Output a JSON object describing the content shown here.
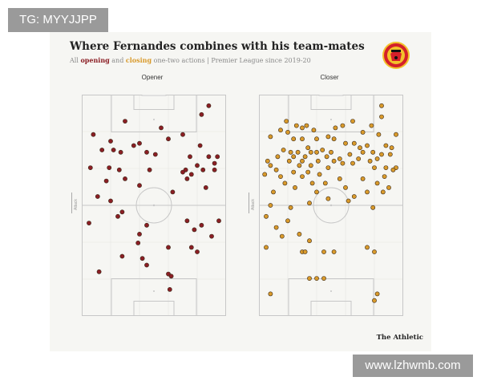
{
  "watermark_top": "TG: MYYJJPP",
  "watermark_bottom": "www.lzhwmb.com",
  "brand": "The Athletic",
  "colors": {
    "opener": "#8b1e24",
    "closer": "#d99a2b",
    "pitch_line": "#c7c7c7",
    "card_bg": "#f6f6f3"
  },
  "chart_data": {
    "type": "scatter",
    "title": "Where Fernandes combines with his team-mates",
    "subtitle_parts": [
      "All ",
      "opening",
      " and ",
      "closing",
      " one-two actions | Premier League since 2019-20"
    ],
    "axis_note": "Attack",
    "x_range": [
      0,
      100
    ],
    "y_range": [
      0,
      100
    ],
    "grid": true,
    "series": [
      {
        "name": "Opener",
        "color": "#8b1e24",
        "points": [
          [
            88,
            5
          ],
          [
            83,
            9
          ],
          [
            30,
            12
          ],
          [
            55,
            15
          ],
          [
            8,
            18
          ],
          [
            70,
            18
          ],
          [
            60,
            20
          ],
          [
            20,
            21
          ],
          [
            40,
            22
          ],
          [
            36,
            23
          ],
          [
            82,
            23
          ],
          [
            14,
            25
          ],
          [
            22,
            25
          ],
          [
            27,
            26
          ],
          [
            45,
            26
          ],
          [
            51,
            27
          ],
          [
            94,
            28
          ],
          [
            75,
            28
          ],
          [
            88,
            28
          ],
          [
            92,
            31
          ],
          [
            6,
            33
          ],
          [
            19,
            33
          ],
          [
            26,
            34
          ],
          [
            47,
            34
          ],
          [
            72,
            34
          ],
          [
            80,
            32
          ],
          [
            84,
            34
          ],
          [
            92,
            34
          ],
          [
            70,
            35
          ],
          [
            76,
            36
          ],
          [
            30,
            38
          ],
          [
            73,
            38
          ],
          [
            17,
            39
          ],
          [
            40,
            41
          ],
          [
            86,
            42
          ],
          [
            63,
            44
          ],
          [
            11,
            46
          ],
          [
            20,
            48
          ],
          [
            28,
            53
          ],
          [
            25,
            55
          ],
          [
            73,
            57
          ],
          [
            95,
            57
          ],
          [
            5,
            58
          ],
          [
            45,
            59
          ],
          [
            83,
            59
          ],
          [
            78,
            61
          ],
          [
            40,
            63
          ],
          [
            90,
            64
          ],
          [
            39,
            67
          ],
          [
            76,
            69
          ],
          [
            60,
            69
          ],
          [
            80,
            71
          ],
          [
            28,
            73
          ],
          [
            42,
            74
          ],
          [
            45,
            77
          ],
          [
            12,
            80
          ],
          [
            60,
            81
          ],
          [
            62,
            82
          ],
          [
            61,
            88
          ]
        ]
      },
      {
        "name": "Closer",
        "color": "#d99a2b",
        "points": [
          [
            85,
            5
          ],
          [
            85,
            10
          ],
          [
            19,
            12
          ],
          [
            65,
            12
          ],
          [
            26,
            14
          ],
          [
            33,
            14
          ],
          [
            30,
            15
          ],
          [
            53,
            15
          ],
          [
            58,
            14
          ],
          [
            78,
            14
          ],
          [
            15,
            16
          ],
          [
            38,
            16
          ],
          [
            20,
            17
          ],
          [
            72,
            17
          ],
          [
            83,
            18
          ],
          [
            95,
            18
          ],
          [
            8,
            19
          ],
          [
            48,
            19
          ],
          [
            24,
            20
          ],
          [
            30,
            20
          ],
          [
            40,
            20
          ],
          [
            52,
            20
          ],
          [
            60,
            22
          ],
          [
            66,
            22
          ],
          [
            75,
            23
          ],
          [
            88,
            23
          ],
          [
            70,
            24
          ],
          [
            92,
            24
          ],
          [
            34,
            24
          ],
          [
            17,
            25
          ],
          [
            22,
            26
          ],
          [
            27,
            26
          ],
          [
            36,
            26
          ],
          [
            40,
            26
          ],
          [
            44,
            25
          ],
          [
            50,
            26
          ],
          [
            72,
            26
          ],
          [
            79,
            26
          ],
          [
            85,
            27
          ],
          [
            91,
            27
          ],
          [
            13,
            28
          ],
          [
            24,
            28
          ],
          [
            32,
            28
          ],
          [
            47,
            28
          ],
          [
            56,
            29
          ],
          [
            63,
            27
          ],
          [
            69,
            29
          ],
          [
            82,
            29
          ],
          [
            6,
            30
          ],
          [
            21,
            30
          ],
          [
            30,
            30
          ],
          [
            41,
            30
          ],
          [
            52,
            30
          ],
          [
            77,
            30
          ],
          [
            8,
            32
          ],
          [
            28,
            32
          ],
          [
            36,
            32
          ],
          [
            58,
            31
          ],
          [
            65,
            31
          ],
          [
            48,
            33
          ],
          [
            80,
            33
          ],
          [
            88,
            33
          ],
          [
            95,
            33
          ],
          [
            12,
            34
          ],
          [
            24,
            35
          ],
          [
            34,
            35
          ],
          [
            42,
            36
          ],
          [
            15,
            37
          ],
          [
            30,
            37
          ],
          [
            56,
            38
          ],
          [
            72,
            38
          ],
          [
            87,
            37
          ],
          [
            93,
            34
          ],
          [
            4,
            36
          ],
          [
            18,
            40
          ],
          [
            37,
            40
          ],
          [
            46,
            40
          ],
          [
            82,
            40
          ],
          [
            25,
            42
          ],
          [
            60,
            42
          ],
          [
            90,
            42
          ],
          [
            10,
            44
          ],
          [
            40,
            44
          ],
          [
            75,
            44
          ],
          [
            86,
            44
          ],
          [
            48,
            47
          ],
          [
            66,
            46
          ],
          [
            62,
            48
          ],
          [
            35,
            49
          ],
          [
            8,
            50
          ],
          [
            22,
            51
          ],
          [
            79,
            51
          ],
          [
            5,
            55
          ],
          [
            20,
            57
          ],
          [
            12,
            60
          ],
          [
            28,
            63
          ],
          [
            16,
            64
          ],
          [
            35,
            66
          ],
          [
            5,
            69
          ],
          [
            30,
            71
          ],
          [
            32,
            71
          ],
          [
            45,
            71
          ],
          [
            52,
            71
          ],
          [
            80,
            71
          ],
          [
            75,
            69
          ],
          [
            35,
            83
          ],
          [
            40,
            83
          ],
          [
            45,
            83
          ],
          [
            8,
            90
          ],
          [
            82,
            90
          ],
          [
            80,
            93
          ]
        ]
      }
    ]
  }
}
